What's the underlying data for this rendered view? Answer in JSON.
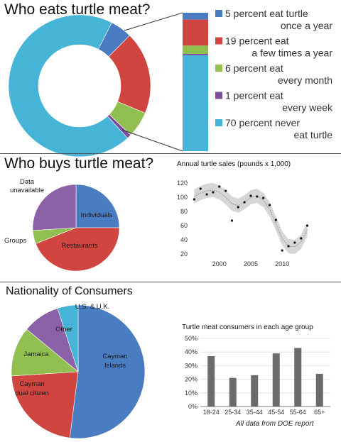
{
  "chart_data": [
    {
      "type": "pie",
      "title": "Who eats turtle meat?",
      "style": "donut",
      "slices": [
        {
          "label": "5 percent eat turtle once a year",
          "value": 5,
          "color": "#4a7cc2"
        },
        {
          "label": "19 percent eat a few times a year",
          "value": 19,
          "color": "#d0453f"
        },
        {
          "label": "6 percent eat every month",
          "value": 6,
          "color": "#92c050"
        },
        {
          "label": "1 percent eat every week",
          "value": 1,
          "color": "#7b4d9e"
        },
        {
          "label": "70 percent never eat turtle",
          "value": 70,
          "color": "#45b4d6"
        }
      ],
      "legend": [
        {
          "lines": [
            "5 percent eat turtle",
            "once a year"
          ],
          "color": "#4a7cc2"
        },
        {
          "lines": [
            "19 percent eat",
            "a few times a year"
          ],
          "color": "#d0453f"
        },
        {
          "lines": [
            "6 percent eat",
            "every month"
          ],
          "color": "#92c050"
        },
        {
          "lines": [
            "1 percent eat",
            "every week"
          ],
          "color": "#7b4d9e"
        },
        {
          "lines": [
            "70 percent never",
            "eat turtle"
          ],
          "color": "#45b4d6"
        }
      ],
      "legend_position": "right"
    },
    {
      "type": "pie",
      "title": "Who buys turtle meat?",
      "slices": [
        {
          "label": "Individuals",
          "value": 25,
          "color": "#4a7cc2"
        },
        {
          "label": "Restaurants",
          "value": 44,
          "color": "#d0453f"
        },
        {
          "label": "Groups",
          "value": 5,
          "color": "#92c050"
        },
        {
          "label": "Data unavailable",
          "value": 26,
          "color": "#8b62a8"
        }
      ],
      "label_lines": {
        "data_unavailable": [
          "Data",
          "unavailable"
        ],
        "groups": "Groups",
        "individuals": "Individuals",
        "restaurants": "Restaurants"
      }
    },
    {
      "type": "scatter",
      "title": "Annual turtle sales (pounds x 1,000)",
      "x": [
        1996,
        1997,
        1998,
        1999,
        2000,
        2001,
        2002,
        2003,
        2004,
        2005,
        2006,
        2007,
        2008,
        2009,
        2010,
        2011,
        2012,
        2013,
        2014
      ],
      "y": [
        97,
        112,
        104,
        107,
        115,
        109,
        67,
        86,
        93,
        102,
        101,
        99,
        89,
        68,
        25,
        31,
        36,
        42,
        60
      ],
      "trend": [
        {
          "x": 1996,
          "y": 101
        },
        {
          "x": 1997,
          "y": 106
        },
        {
          "x": 1998,
          "y": 109
        },
        {
          "x": 1999,
          "y": 110
        },
        {
          "x": 2000,
          "y": 107
        },
        {
          "x": 2001,
          "y": 100
        },
        {
          "x": 2002,
          "y": 91
        },
        {
          "x": 2003,
          "y": 88
        },
        {
          "x": 2004,
          "y": 93
        },
        {
          "x": 2005,
          "y": 100
        },
        {
          "x": 2006,
          "y": 102
        },
        {
          "x": 2007,
          "y": 96
        },
        {
          "x": 2008,
          "y": 83
        },
        {
          "x": 2009,
          "y": 63
        },
        {
          "x": 2010,
          "y": 42
        },
        {
          "x": 2011,
          "y": 31
        },
        {
          "x": 2012,
          "y": 30
        },
        {
          "x": 2013,
          "y": 37
        },
        {
          "x": 2014,
          "y": 55
        }
      ],
      "band": 10,
      "xlim": [
        1995.5,
        2014.5
      ],
      "ylim": [
        14,
        128
      ],
      "x_ticks": [
        2000,
        2005,
        2010
      ],
      "y_ticks": [
        20,
        40,
        60,
        80,
        100,
        120
      ],
      "grid": false
    },
    {
      "type": "pie",
      "title": "Nationality of Consumers",
      "slices": [
        {
          "label": "Cayman Islands",
          "value": 52,
          "color": "#4a7cc2"
        },
        {
          "label": "Cayman dual citizen",
          "value": 22,
          "color": "#d0453f"
        },
        {
          "label": "Jamaica",
          "value": 12,
          "color": "#92c050"
        },
        {
          "label": "Other",
          "value": 9,
          "color": "#8b62a8"
        },
        {
          "label": "U.S. & U.K.",
          "value": 5,
          "color": "#45b4d6"
        }
      ],
      "label_lines": {
        "cayman_islands": [
          "Cayman",
          "Islands"
        ],
        "cayman_dual": [
          "Cayman",
          "dual citizen"
        ],
        "jamaica": "Jamaica",
        "other": "Other",
        "us_uk": "U.S. & U.K."
      }
    },
    {
      "type": "bar",
      "title": "Turtle meat consumers in each age group",
      "categories": [
        "18-24",
        "25-34",
        "35-44",
        "45-54",
        "55-64",
        "65+"
      ],
      "values": [
        0.37,
        0.21,
        0.23,
        0.39,
        0.43,
        0.24
      ],
      "ylim": [
        0,
        0.5
      ],
      "y_ticks": [
        "0%",
        "10%",
        "20%",
        "30%",
        "40%",
        "50%"
      ],
      "bar_color": "#6b6b6b",
      "grid": true
    }
  ],
  "footnote": "All data from DOE report"
}
